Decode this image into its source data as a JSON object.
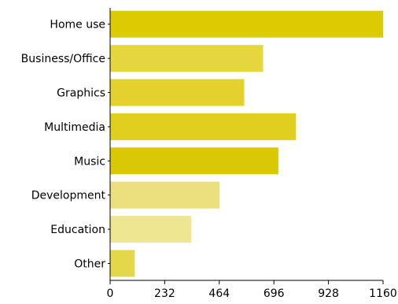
{
  "chart_data": {
    "type": "bar",
    "orientation": "horizontal",
    "title": "",
    "xlabel": "",
    "ylabel": "",
    "categories": [
      "Home use",
      "Business/Office",
      "Graphics",
      "Multimedia",
      "Music",
      "Development",
      "Education",
      "Other"
    ],
    "values": [
      1160,
      650,
      570,
      790,
      715,
      465,
      345,
      105
    ],
    "colors": [
      "#dccb00",
      "#e5d640",
      "#e3d22b",
      "#e1cf20",
      "#dac807",
      "#ebe07d",
      "#eee690",
      "#e5d74a"
    ],
    "xlim": [
      0,
      1160
    ],
    "xticks": [
      "0",
      "232",
      "464",
      "696",
      "928",
      "1160"
    ],
    "grid": false,
    "legend": "none"
  },
  "colors": {
    "axis": "#000000",
    "background": "#ffffff"
  }
}
